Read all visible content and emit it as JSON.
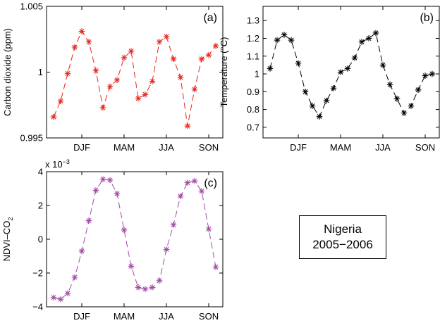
{
  "chart_data": [
    {
      "id": "a",
      "type": "line",
      "panel_label": "(a)",
      "ylabel": "Carbon dioxide (ppm)",
      "xticklabels": [
        "DJF",
        "MAM",
        "JJA",
        "SON"
      ],
      "ylim": [
        0.995,
        1.005
      ],
      "yticks": [
        0.995,
        1.0,
        1.005
      ],
      "yticklabels": [
        "0.995",
        "1",
        "1.005"
      ],
      "color": "#e8261d",
      "series": [
        {
          "values": [
            0.9966,
            0.9978,
            0.9999,
            1.0019,
            1.0031,
            1.0023,
            1.0001,
            0.9973,
            0.9989,
            0.9994,
            1.0011,
            1.0016,
            0.998,
            0.9983,
            0.9993,
            1.0023,
            1.0027,
            1.001,
            0.9996,
            0.9959,
            0.9987,
            1.001,
            1.0013,
            1.002
          ]
        }
      ]
    },
    {
      "id": "b",
      "type": "line",
      "panel_label": "(b)",
      "ylabel": "Temperature (°C)",
      "xticklabels": [
        "DJF",
        "MAM",
        "JJA",
        "SON"
      ],
      "ylim": [
        0.64,
        1.38
      ],
      "yticks": [
        0.7,
        0.8,
        0.9,
        1.0,
        1.1,
        1.2,
        1.3
      ],
      "yticklabels": [
        "0.7",
        "0.8",
        "0.9",
        "1",
        "1.1",
        "1.2",
        "1.3"
      ],
      "color": "#000000",
      "series": [
        {
          "values": [
            1.03,
            1.19,
            1.22,
            1.19,
            1.06,
            0.9,
            0.82,
            0.76,
            0.85,
            0.92,
            1.01,
            1.03,
            1.09,
            1.18,
            1.2,
            1.23,
            1.05,
            0.94,
            0.86,
            0.78,
            0.82,
            0.91,
            0.99,
            1.0
          ]
        }
      ]
    },
    {
      "id": "c",
      "type": "line",
      "panel_label": "(c)",
      "ylabel_main": "NDVI–CO",
      "ylabel_sub": "2",
      "exponent_base": "x 10",
      "exponent_power": "−3",
      "xticklabels": [
        "DJF",
        "MAM",
        "JJA",
        "SON"
      ],
      "ylim": [
        -4,
        4
      ],
      "yticks": [
        -4,
        -2,
        0,
        2,
        4
      ],
      "yticklabels": [
        "−4",
        "−2",
        "0",
        "2",
        "4"
      ],
      "color": "#a34aa6",
      "series": [
        {
          "values": [
            -3.45,
            -3.55,
            -3.2,
            -2.25,
            -0.7,
            1.1,
            2.9,
            3.55,
            3.5,
            2.7,
            0.55,
            -1.6,
            -2.85,
            -2.95,
            -2.85,
            -2.45,
            -0.6,
            0.85,
            2.55,
            3.35,
            3.45,
            2.85,
            0.6,
            -1.65
          ]
        }
      ]
    }
  ],
  "annotation": {
    "line1": "Nigeria",
    "line2": "2005−2006"
  }
}
